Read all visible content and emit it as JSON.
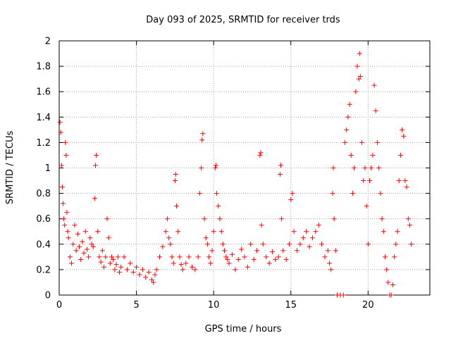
{
  "chart_data": {
    "type": "scatter",
    "title": "Day 093 of 2025, SRMTID for receiver trds",
    "xlabel": "GPS time / hours",
    "ylabel": "SRMTID / TECUs",
    "xlim": [
      0,
      24
    ],
    "ylim": [
      0,
      2
    ],
    "x_ticks": [
      0,
      5,
      10,
      15,
      20
    ],
    "x_tick_labels": [
      "0",
      "5",
      "10",
      "15",
      "20"
    ],
    "y_ticks": [
      0,
      0.2,
      0.4,
      0.6,
      0.8,
      1,
      1.2,
      1.4,
      1.6,
      1.8,
      2
    ],
    "y_tick_labels": [
      "0",
      "0.2",
      "0.4",
      "0.6",
      "0.8",
      "1",
      "1.2",
      "1.4",
      "1.6",
      "1.8",
      "2"
    ],
    "grid": true,
    "marker": "+",
    "color": "#ff0000",
    "series": [
      {
        "name": "SRMTID",
        "points": [
          [
            0.05,
            1.36
          ],
          [
            0.1,
            1.28
          ],
          [
            0.15,
            1.02
          ],
          [
            0.2,
            0.85
          ],
          [
            0.25,
            0.72
          ],
          [
            0.3,
            0.6
          ],
          [
            0.35,
            0.55
          ],
          [
            0.4,
            1.2
          ],
          [
            0.45,
            1.1
          ],
          [
            0.5,
            0.65
          ],
          [
            0.55,
            0.5
          ],
          [
            0.6,
            0.45
          ],
          [
            0.7,
            0.3
          ],
          [
            0.8,
            0.25
          ],
          [
            0.9,
            0.4
          ],
          [
            1.0,
            0.55
          ],
          [
            1.1,
            0.35
          ],
          [
            1.2,
            0.48
          ],
          [
            1.3,
            0.38
          ],
          [
            1.4,
            0.28
          ],
          [
            1.5,
            0.42
          ],
          [
            1.6,
            0.33
          ],
          [
            1.7,
            0.5
          ],
          [
            1.8,
            0.36
          ],
          [
            1.9,
            0.3
          ],
          [
            2.0,
            0.45
          ],
          [
            2.1,
            0.4
          ],
          [
            2.2,
            0.38
          ],
          [
            2.3,
            0.76
          ],
          [
            2.35,
            1.02
          ],
          [
            2.4,
            1.1
          ],
          [
            2.5,
            0.5
          ],
          [
            2.6,
            0.3
          ],
          [
            2.7,
            0.26
          ],
          [
            2.8,
            0.35
          ],
          [
            2.9,
            0.22
          ],
          [
            3.0,
            0.3
          ],
          [
            3.1,
            0.6
          ],
          [
            3.2,
            0.45
          ],
          [
            3.3,
            0.25
          ],
          [
            3.4,
            0.3
          ],
          [
            3.5,
            0.28
          ],
          [
            3.6,
            0.2
          ],
          [
            3.7,
            0.24
          ],
          [
            3.8,
            0.3
          ],
          [
            3.9,
            0.18
          ],
          [
            4.0,
            0.22
          ],
          [
            4.2,
            0.3
          ],
          [
            4.4,
            0.2
          ],
          [
            4.6,
            0.25
          ],
          [
            4.8,
            0.18
          ],
          [
            5.0,
            0.22
          ],
          [
            5.2,
            0.16
          ],
          [
            5.4,
            0.2
          ],
          [
            5.6,
            0.14
          ],
          [
            5.8,
            0.18
          ],
          [
            6.0,
            0.12
          ],
          [
            6.1,
            0.1
          ],
          [
            6.2,
            0.16
          ],
          [
            6.3,
            0.2
          ],
          [
            6.5,
            0.3
          ],
          [
            6.7,
            0.38
          ],
          [
            6.9,
            0.5
          ],
          [
            7.0,
            0.6
          ],
          [
            7.1,
            0.45
          ],
          [
            7.2,
            0.4
          ],
          [
            7.3,
            0.3
          ],
          [
            7.4,
            0.25
          ],
          [
            7.5,
            0.9
          ],
          [
            7.55,
            0.95
          ],
          [
            7.6,
            0.7
          ],
          [
            7.7,
            0.5
          ],
          [
            7.8,
            0.3
          ],
          [
            7.9,
            0.24
          ],
          [
            8.0,
            0.2
          ],
          [
            8.2,
            0.25
          ],
          [
            8.4,
            0.3
          ],
          [
            8.6,
            0.22
          ],
          [
            8.8,
            0.2
          ],
          [
            9.0,
            0.3
          ],
          [
            9.1,
            0.8
          ],
          [
            9.2,
            1.0
          ],
          [
            9.25,
            1.22
          ],
          [
            9.3,
            1.27
          ],
          [
            9.4,
            0.6
          ],
          [
            9.5,
            0.45
          ],
          [
            9.6,
            0.4
          ],
          [
            9.7,
            0.3
          ],
          [
            9.8,
            0.25
          ],
          [
            9.9,
            0.35
          ],
          [
            10.0,
            0.5
          ],
          [
            10.1,
            1.0
          ],
          [
            10.15,
            1.02
          ],
          [
            10.2,
            0.8
          ],
          [
            10.3,
            0.7
          ],
          [
            10.4,
            0.6
          ],
          [
            10.5,
            0.5
          ],
          [
            10.6,
            0.4
          ],
          [
            10.7,
            0.35
          ],
          [
            10.8,
            0.3
          ],
          [
            10.9,
            0.28
          ],
          [
            11.0,
            0.25
          ],
          [
            11.2,
            0.32
          ],
          [
            11.4,
            0.2
          ],
          [
            11.6,
            0.28
          ],
          [
            11.8,
            0.36
          ],
          [
            12.0,
            0.3
          ],
          [
            12.2,
            0.22
          ],
          [
            12.4,
            0.4
          ],
          [
            12.6,
            0.28
          ],
          [
            12.8,
            0.35
          ],
          [
            13.0,
            1.1
          ],
          [
            13.05,
            1.12
          ],
          [
            13.1,
            0.55
          ],
          [
            13.2,
            0.4
          ],
          [
            13.4,
            0.3
          ],
          [
            13.6,
            0.25
          ],
          [
            13.8,
            0.34
          ],
          [
            14.0,
            0.28
          ],
          [
            14.2,
            0.3
          ],
          [
            14.3,
            0.95
          ],
          [
            14.35,
            1.02
          ],
          [
            14.4,
            0.6
          ],
          [
            14.5,
            0.35
          ],
          [
            14.7,
            0.28
          ],
          [
            14.9,
            0.4
          ],
          [
            15.0,
            0.75
          ],
          [
            15.1,
            0.8
          ],
          [
            15.2,
            0.5
          ],
          [
            15.4,
            0.35
          ],
          [
            15.6,
            0.4
          ],
          [
            15.8,
            0.45
          ],
          [
            16.0,
            0.5
          ],
          [
            16.2,
            0.38
          ],
          [
            16.4,
            0.45
          ],
          [
            16.6,
            0.5
          ],
          [
            16.8,
            0.55
          ],
          [
            17.0,
            0.4
          ],
          [
            17.2,
            0.3
          ],
          [
            17.4,
            0.35
          ],
          [
            17.5,
            0.25
          ],
          [
            17.6,
            0.2
          ],
          [
            17.7,
            0.8
          ],
          [
            17.75,
            1.0
          ],
          [
            17.8,
            0.6
          ],
          [
            17.9,
            0.35
          ],
          [
            18.0,
            0.0
          ],
          [
            18.2,
            0.0
          ],
          [
            18.4,
            0.0
          ],
          [
            18.5,
            1.2
          ],
          [
            18.6,
            1.3
          ],
          [
            18.7,
            1.4
          ],
          [
            18.8,
            1.5
          ],
          [
            18.9,
            1.1
          ],
          [
            19.0,
            0.8
          ],
          [
            19.1,
            1.0
          ],
          [
            19.2,
            1.6
          ],
          [
            19.3,
            1.8
          ],
          [
            19.4,
            1.7
          ],
          [
            19.45,
            1.9
          ],
          [
            19.5,
            1.72
          ],
          [
            19.6,
            1.2
          ],
          [
            19.7,
            0.9
          ],
          [
            19.8,
            1.0
          ],
          [
            19.9,
            0.7
          ],
          [
            20.0,
            0.4
          ],
          [
            20.1,
            0.9
          ],
          [
            20.2,
            1.0
          ],
          [
            20.3,
            1.1
          ],
          [
            20.4,
            1.65
          ],
          [
            20.5,
            1.45
          ],
          [
            20.6,
            1.2
          ],
          [
            20.7,
            1.0
          ],
          [
            20.8,
            0.8
          ],
          [
            20.9,
            0.6
          ],
          [
            21.0,
            0.5
          ],
          [
            21.1,
            0.3
          ],
          [
            21.2,
            0.2
          ],
          [
            21.3,
            0.1
          ],
          [
            21.4,
            0.0
          ],
          [
            21.5,
            0.0
          ],
          [
            21.6,
            0.08
          ],
          [
            21.7,
            0.3
          ],
          [
            21.8,
            0.4
          ],
          [
            21.9,
            0.5
          ],
          [
            22.0,
            0.9
          ],
          [
            22.1,
            1.1
          ],
          [
            22.2,
            1.3
          ],
          [
            22.3,
            1.25
          ],
          [
            22.4,
            0.9
          ],
          [
            22.5,
            0.85
          ],
          [
            22.6,
            0.6
          ],
          [
            22.7,
            0.55
          ],
          [
            22.8,
            0.4
          ]
        ]
      }
    ]
  }
}
